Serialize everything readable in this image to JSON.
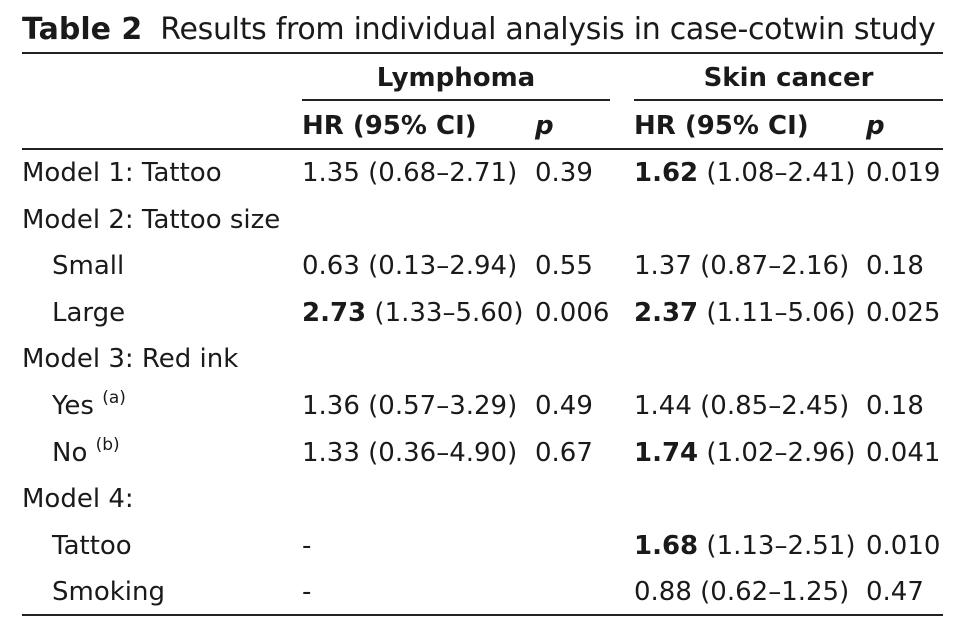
{
  "caption": {
    "label": "Table 2",
    "text": "Results from individual analysis in case-cotwin study"
  },
  "columns": {
    "group1": "Lymphoma",
    "group2": "Skin cancer",
    "hr": "HR (95% CI)",
    "p": "p"
  },
  "rows": [
    {
      "label": "Model 1: Tattoo",
      "sup": "",
      "indent": false,
      "l_pt": "",
      "l_ci": "1.35 (0.68–2.71)",
      "l_p": "0.39",
      "s_pt": "1.62",
      "s_ci": " (1.08–2.41)",
      "s_p": "0.019"
    },
    {
      "label": "Model 2: Tattoo size",
      "sup": "",
      "indent": false,
      "l_pt": "",
      "l_ci": "",
      "l_p": "",
      "s_pt": "",
      "s_ci": "",
      "s_p": ""
    },
    {
      "label": "Small",
      "sup": "",
      "indent": true,
      "l_pt": "",
      "l_ci": "0.63 (0.13–2.94)",
      "l_p": "0.55",
      "s_pt": "",
      "s_ci": "1.37 (0.87–2.16)",
      "s_p": "0.18"
    },
    {
      "label": "Large",
      "sup": "",
      "indent": true,
      "l_pt": "2.73",
      "l_ci": " (1.33–5.60)",
      "l_p": "0.006",
      "s_pt": "2.37",
      "s_ci": " (1.11–5.06)",
      "s_p": "0.025"
    },
    {
      "label": "Model 3: Red ink",
      "sup": "",
      "indent": false,
      "l_pt": "",
      "l_ci": "",
      "l_p": "",
      "s_pt": "",
      "s_ci": "",
      "s_p": ""
    },
    {
      "label": "Yes ",
      "sup": "(a)",
      "indent": true,
      "l_pt": "",
      "l_ci": "1.36 (0.57–3.29)",
      "l_p": "0.49",
      "s_pt": "",
      "s_ci": "1.44 (0.85–2.45)",
      "s_p": "0.18"
    },
    {
      "label": "No ",
      "sup": "(b)",
      "indent": true,
      "l_pt": "",
      "l_ci": "1.33 (0.36–4.90)",
      "l_p": "0.67",
      "s_pt": "1.74",
      "s_ci": " (1.02–2.96)",
      "s_p": "0.041"
    },
    {
      "label": "Model 4:",
      "sup": "",
      "indent": false,
      "l_pt": "",
      "l_ci": "",
      "l_p": "",
      "s_pt": "",
      "s_ci": "",
      "s_p": ""
    },
    {
      "label": "Tattoo",
      "sup": "",
      "indent": true,
      "l_pt": "",
      "l_ci": "-",
      "l_p": "",
      "s_pt": "1.68",
      "s_ci": " (1.13–2.51)",
      "s_p": "0.010"
    },
    {
      "label": "Smoking",
      "sup": "",
      "indent": true,
      "l_pt": "",
      "l_ci": "-",
      "l_p": "",
      "s_pt": "",
      "s_ci": "0.88 (0.62–1.25)",
      "s_p": "0.47"
    }
  ]
}
